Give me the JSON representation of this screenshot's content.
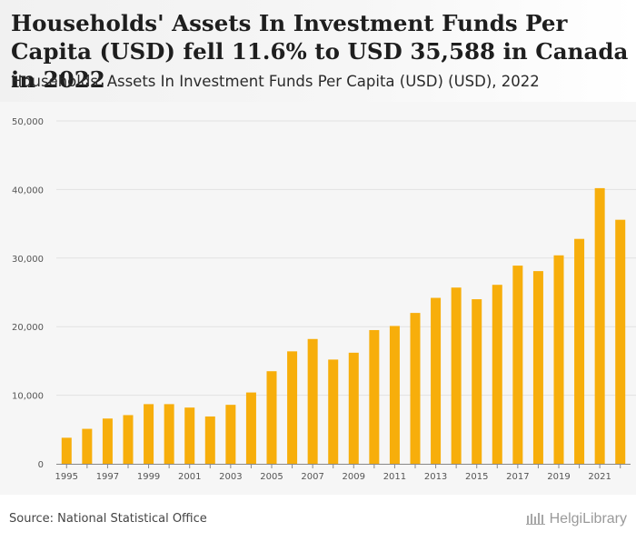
{
  "header": {
    "headline": "Households' Assets In Investment Funds Per Capita (USD) fell 11.6% to USD 35,588 in Canada in 2022",
    "subtitle": "Households' Assets In Investment Funds Per Capita (USD) (USD), 2022"
  },
  "footer": {
    "source": "Source: National Statistical Office",
    "brand": "HelgiLibrary"
  },
  "colors": {
    "bar": "#f7ae0b",
    "grid": "#e2e2e2",
    "axis_text": "#555555"
  },
  "chart_data": {
    "type": "bar",
    "title": "Households' Assets In Investment Funds Per Capita (USD) (USD), 2022",
    "xlabel": "",
    "ylabel": "",
    "ylim": [
      0,
      50000
    ],
    "yticks": [
      0,
      10000,
      20000,
      30000,
      40000,
      50000
    ],
    "ytick_labels": [
      "0",
      "10,000",
      "20,000",
      "30,000",
      "40,000",
      "50,000"
    ],
    "categories": [
      "1995",
      "1996",
      "1997",
      "1998",
      "1999",
      "2000",
      "2001",
      "2002",
      "2003",
      "2004",
      "2005",
      "2006",
      "2007",
      "2008",
      "2009",
      "2010",
      "2011",
      "2012",
      "2013",
      "2014",
      "2015",
      "2016",
      "2017",
      "2018",
      "2019",
      "2020",
      "2021",
      "2022"
    ],
    "xtick_labels": [
      "1995",
      "",
      "1997",
      "",
      "1999",
      "",
      "2001",
      "",
      "2003",
      "",
      "2005",
      "",
      "2007",
      "",
      "2009",
      "",
      "2011",
      "",
      "2013",
      "",
      "2015",
      "",
      "2017",
      "",
      "2019",
      "",
      "2021",
      ""
    ],
    "values": [
      3800,
      5100,
      6600,
      7100,
      8700,
      8700,
      8200,
      6900,
      8600,
      10400,
      13500,
      16400,
      18200,
      15200,
      16200,
      19500,
      20100,
      22000,
      24200,
      25700,
      24000,
      26100,
      28900,
      28100,
      30400,
      32800,
      40200,
      35588
    ],
    "grid": true
  }
}
